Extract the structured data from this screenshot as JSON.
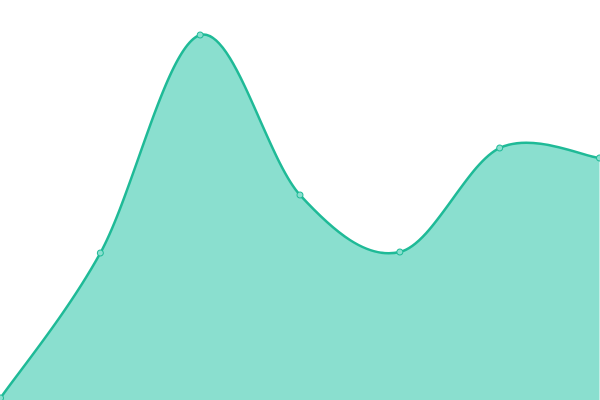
{
  "chart_data": {
    "type": "area",
    "title": "",
    "xlabel": "",
    "ylabel": "",
    "x": [
      0,
      1,
      2,
      3,
      4,
      5,
      6
    ],
    "series": [
      {
        "values": [
          2,
          147,
          365,
          205,
          148,
          252,
          242
        ]
      }
    ],
    "ylim": [
      0,
      400
    ],
    "xlim": [
      0,
      6
    ],
    "grid": false,
    "axes_visible": false,
    "curve": "smooth",
    "colors": {
      "line": "#1fba97",
      "fill": "#8adfcf",
      "point_fill": "#8adfcf",
      "point_stroke": "#1fba97"
    }
  }
}
